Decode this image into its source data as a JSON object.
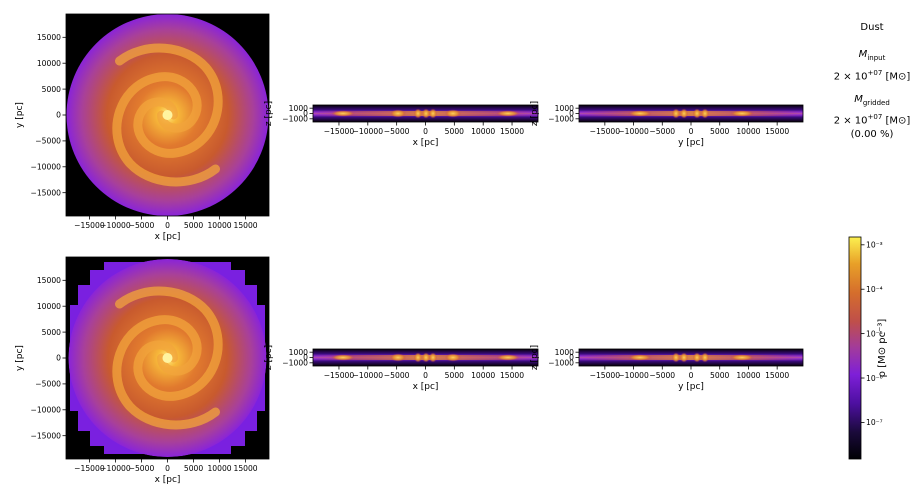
{
  "chart_data": {
    "type": "heatmap",
    "colormap": "inferno-like (black-purple-orange-yellow)",
    "panel_rows": [
      {
        "row": "input",
        "panels": [
          {
            "view": "face-on",
            "xlabel": "x [pc]",
            "ylabel": "y [pc]",
            "xlim": [
              -19500,
              19500
            ],
            "ylim": [
              -19500,
              19500
            ],
            "shape": "circular spiral disk"
          },
          {
            "view": "edge-on",
            "xlabel": "x [pc]",
            "ylabel": "z [pc]",
            "xlim": [
              -19500,
              19500
            ],
            "ylim": [
              -1600,
              1600
            ]
          },
          {
            "view": "edge-on",
            "xlabel": "y [pc]",
            "ylabel": "z [pc]",
            "xlim": [
              -19500,
              19500
            ],
            "ylim": [
              -1600,
              1600
            ]
          }
        ]
      },
      {
        "row": "gridded",
        "panels": [
          {
            "view": "face-on",
            "xlabel": "x [pc]",
            "ylabel": "y [pc]",
            "xlim": [
              -19500,
              19500
            ],
            "ylim": [
              -19500,
              19500
            ],
            "shape": "blocky (gridded) spiral disk"
          },
          {
            "view": "edge-on",
            "xlabel": "x [pc]",
            "ylabel": "z [pc]",
            "xlim": [
              -19500,
              19500
            ],
            "ylim": [
              -1600,
              1600
            ]
          },
          {
            "view": "edge-on",
            "xlabel": "y [pc]",
            "ylabel": "z [pc]",
            "xlim": [
              -19500,
              19500
            ],
            "ylim": [
              -1600,
              1600
            ]
          }
        ]
      }
    ],
    "face_ticks": [
      -15000,
      -10000,
      -5000,
      0,
      5000,
      10000,
      15000
    ],
    "edge_xticks": [
      -15000,
      -10000,
      -5000,
      0,
      5000,
      10000,
      15000
    ],
    "edge_zticks": [
      -1000,
      0,
      1000
    ],
    "colorbar": {
      "label": "ρ [M⊙ pc⁻³]",
      "scale": "log",
      "range": [
        1.5e-08,
        0.0015
      ],
      "ticks": [
        {
          "value": 1e-07,
          "label": "10⁻⁷"
        },
        {
          "value": 1e-06,
          "label": "10⁻⁶"
        },
        {
          "value": 1e-05,
          "label": "10⁻⁵"
        },
        {
          "value": 0.0001,
          "label": "10⁻⁴"
        },
        {
          "value": 0.001,
          "label": "10⁻³"
        }
      ]
    }
  },
  "info": {
    "title": "Dust",
    "input_label": "M",
    "input_sub": "input",
    "input_value_base": "2 × 10",
    "input_value_exp": "+07",
    "input_unit": "[M⊙]",
    "gridded_label": "M",
    "gridded_sub": "gridded",
    "gridded_value_base": "2 × 10",
    "gridded_value_exp": "+07",
    "gridded_unit": "[M⊙]",
    "percent": "(0.00 %)"
  }
}
